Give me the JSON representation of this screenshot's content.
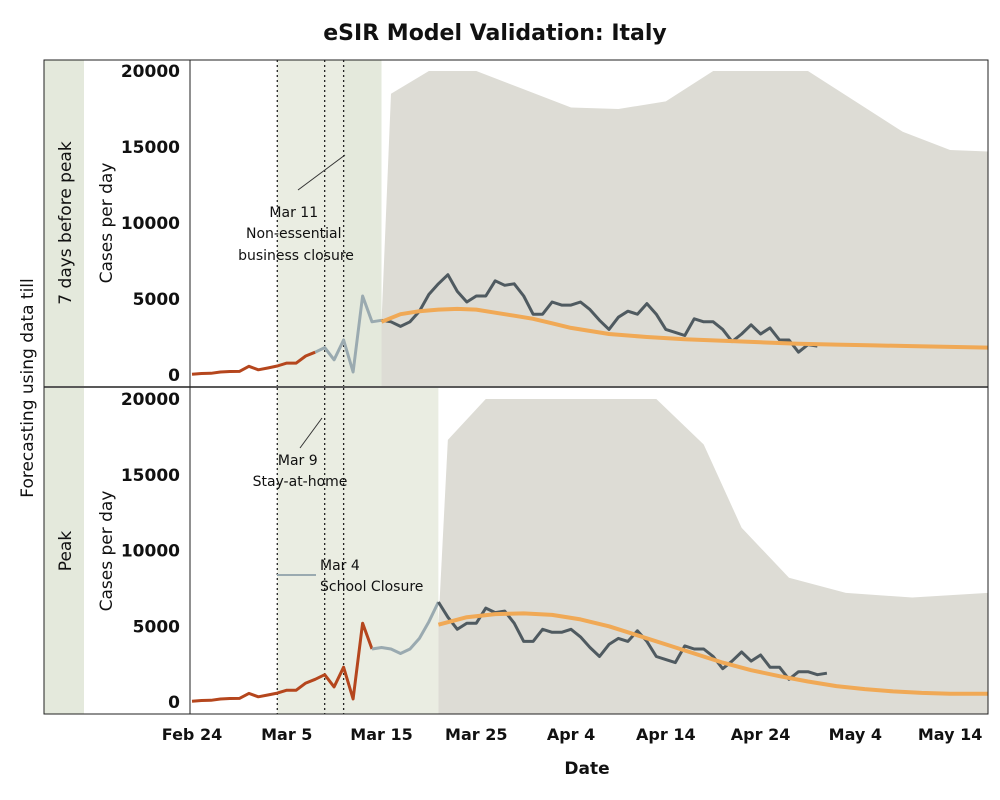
{
  "chart_data": {
    "type": "line",
    "title": "eSIR Model Validation: Italy",
    "xlabel": "Date",
    "outer_ylabel": "Forecasting using data till",
    "xticks": [
      "Feb 24",
      "Mar 5",
      "Mar 15",
      "Mar 25",
      "Apr 4",
      "Apr 14",
      "Apr 24",
      "May 4",
      "May 14"
    ],
    "xlim": [
      "2020-02-24",
      "2020-05-18"
    ],
    "ylim": [
      0,
      20000
    ],
    "yticks": [
      0,
      5000,
      10000,
      15000,
      20000
    ],
    "colors": {
      "observed_before": "#b5461d",
      "observed_training": "#9aaab0",
      "observed_after": "#4f5a60",
      "prediction": "#f0a956",
      "ci_band": "#dddcd5",
      "period_shade": "#eaede2",
      "row_label_bg": "#e4e9dc"
    },
    "panels": [
      {
        "row_label": "7 days before peak",
        "ylabel": "Cases per day",
        "annotation": {
          "date": "Mar 11",
          "lines": [
            "Mar 11",
            "Non-essential",
            "business closure"
          ]
        },
        "series": [
          {
            "role": "observed_before",
            "x": [
              "2020-02-24",
              "2020-02-25",
              "2020-02-26",
              "2020-02-27",
              "2020-02-28",
              "2020-02-29",
              "2020-03-01",
              "2020-03-02",
              "2020-03-03",
              "2020-03-04",
              "2020-03-05",
              "2020-03-06",
              "2020-03-07",
              "2020-03-08"
            ],
            "y": [
              50,
              100,
              110,
              200,
              230,
              240,
              570,
              340,
              460,
              590,
              780,
              780,
              1250,
              1500
            ]
          },
          {
            "role": "observed_training",
            "x": [
              "2020-03-08",
              "2020-03-09",
              "2020-03-10",
              "2020-03-11",
              "2020-03-12",
              "2020-03-13",
              "2020-03-14",
              "2020-03-15"
            ],
            "y": [
              1500,
              1800,
              1000,
              2300,
              200,
              5200,
              3500,
              3600
            ]
          },
          {
            "role": "observed_after",
            "x": [
              "2020-03-15",
              "2020-03-16",
              "2020-03-17",
              "2020-03-18",
              "2020-03-19",
              "2020-03-20",
              "2020-03-21",
              "2020-03-22",
              "2020-03-23",
              "2020-03-24",
              "2020-03-25",
              "2020-03-26",
              "2020-03-27",
              "2020-03-28",
              "2020-03-29",
              "2020-03-30",
              "2020-03-31",
              "2020-04-01",
              "2020-04-02",
              "2020-04-03",
              "2020-04-04",
              "2020-04-05",
              "2020-04-06",
              "2020-04-07",
              "2020-04-08",
              "2020-04-09",
              "2020-04-10",
              "2020-04-11",
              "2020-04-12",
              "2020-04-13",
              "2020-04-14",
              "2020-04-15",
              "2020-04-16",
              "2020-04-17",
              "2020-04-18",
              "2020-04-19",
              "2020-04-20",
              "2020-04-21",
              "2020-04-22",
              "2020-04-23",
              "2020-04-24",
              "2020-04-25",
              "2020-04-26",
              "2020-04-27",
              "2020-04-28",
              "2020-04-29",
              "2020-04-30"
            ],
            "y": [
              3600,
              3500,
              3200,
              3500,
              4200,
              5300,
              6000,
              6600,
              5500,
              4800,
              5200,
              5200,
              6200,
              5900,
              6000,
              5200,
              4000,
              4000,
              4800,
              4600,
              4600,
              4800,
              4300,
              3600,
              3000,
              3800,
              4200,
              4000,
              4700,
              4000,
              3000,
              2800,
              2600,
              3700,
              3500,
              3500,
              3000,
              2200,
              2700,
              3300,
              2700,
              3100,
              2300,
              2300,
              1500,
              2000,
              1900
            ]
          },
          {
            "role": "prediction",
            "x": [
              "2020-03-15",
              "2020-03-17",
              "2020-03-19",
              "2020-03-21",
              "2020-03-23",
              "2020-03-25",
              "2020-03-27",
              "2020-03-29",
              "2020-03-31",
              "2020-04-02",
              "2020-04-04",
              "2020-04-08",
              "2020-04-12",
              "2020-04-16",
              "2020-04-20",
              "2020-04-24",
              "2020-04-28",
              "2020-05-02",
              "2020-05-06",
              "2020-05-10",
              "2020-05-14",
              "2020-05-18"
            ],
            "y": [
              3500,
              4000,
              4200,
              4300,
              4350,
              4300,
              4100,
              3900,
              3700,
              3400,
              3100,
              2700,
              2500,
              2350,
              2250,
              2150,
              2050,
              2000,
              1950,
              1900,
              1850,
              1800
            ]
          },
          {
            "role": "ci_upper",
            "x": [
              "2020-03-15",
              "2020-03-16",
              "2020-03-20",
              "2020-03-25",
              "2020-03-30",
              "2020-04-04",
              "2020-04-09",
              "2020-04-14",
              "2020-04-19",
              "2020-04-24",
              "2020-04-29",
              "2020-05-04",
              "2020-05-09",
              "2020-05-14",
              "2020-05-18"
            ],
            "y": [
              3500,
              18500,
              20000,
              20000,
              18800,
              17600,
              17500,
              18000,
              20000,
              20000,
              20000,
              18000,
              16000,
              14800,
              14700
            ]
          }
        ],
        "vlines": [
          "2020-03-04",
          "2020-03-09",
          "2020-03-11"
        ],
        "shade_periods": [
          {
            "from": "2020-03-04",
            "to": "2020-03-11",
            "color": "period_shade"
          },
          {
            "from": "2020-03-11",
            "to": "2020-03-15",
            "color": "row_label_bg"
          }
        ]
      },
      {
        "row_label": "Peak",
        "ylabel": "Cases per day",
        "annotations": [
          {
            "date": "Mar 9",
            "lines": [
              "Mar 9",
              "Stay-at-home"
            ]
          },
          {
            "date": "Mar 4",
            "lines": [
              "Mar 4",
              "School Closure"
            ]
          }
        ],
        "series": [
          {
            "role": "observed_before",
            "x": [
              "2020-02-24",
              "2020-02-25",
              "2020-02-26",
              "2020-02-27",
              "2020-02-28",
              "2020-02-29",
              "2020-03-01",
              "2020-03-02",
              "2020-03-03",
              "2020-03-04",
              "2020-03-05",
              "2020-03-06",
              "2020-03-07",
              "2020-03-08",
              "2020-03-09",
              "2020-03-10",
              "2020-03-11",
              "2020-03-12",
              "2020-03-13",
              "2020-03-14"
            ],
            "y": [
              50,
              100,
              110,
              200,
              230,
              240,
              570,
              340,
              460,
              590,
              780,
              780,
              1250,
              1500,
              1800,
              1000,
              2300,
              200,
              5200,
              3500
            ]
          },
          {
            "role": "observed_training",
            "x": [
              "2020-03-14",
              "2020-03-15",
              "2020-03-16",
              "2020-03-17",
              "2020-03-18",
              "2020-03-19",
              "2020-03-20",
              "2020-03-21"
            ],
            "y": [
              3500,
              3600,
              3500,
              3200,
              3500,
              4200,
              5300,
              6600
            ]
          },
          {
            "role": "observed_after",
            "x": [
              "2020-03-21",
              "2020-03-22",
              "2020-03-23",
              "2020-03-24",
              "2020-03-25",
              "2020-03-26",
              "2020-03-27",
              "2020-03-28",
              "2020-03-29",
              "2020-03-30",
              "2020-03-31",
              "2020-04-01",
              "2020-04-02",
              "2020-04-03",
              "2020-04-04",
              "2020-04-05",
              "2020-04-06",
              "2020-04-07",
              "2020-04-08",
              "2020-04-09",
              "2020-04-10",
              "2020-04-11",
              "2020-04-12",
              "2020-04-13",
              "2020-04-14",
              "2020-04-15",
              "2020-04-16",
              "2020-04-17",
              "2020-04-18",
              "2020-04-19",
              "2020-04-20",
              "2020-04-21",
              "2020-04-22",
              "2020-04-23",
              "2020-04-24",
              "2020-04-25",
              "2020-04-26",
              "2020-04-27",
              "2020-04-28",
              "2020-04-29",
              "2020-04-30",
              "2020-05-01"
            ],
            "y": [
              6600,
              5600,
              4800,
              5200,
              5200,
              6200,
              5900,
              6000,
              5200,
              4000,
              4000,
              4800,
              4600,
              4600,
              4800,
              4300,
              3600,
              3000,
              3800,
              4200,
              4000,
              4700,
              4000,
              3000,
              2800,
              2600,
              3700,
              3500,
              3500,
              3000,
              2200,
              2700,
              3300,
              2700,
              3100,
              2300,
              2300,
              1500,
              2000,
              2000,
              1800,
              1900
            ]
          },
          {
            "role": "prediction",
            "x": [
              "2020-03-21",
              "2020-03-24",
              "2020-03-27",
              "2020-03-30",
              "2020-04-02",
              "2020-04-05",
              "2020-04-08",
              "2020-04-11",
              "2020-04-14",
              "2020-04-17",
              "2020-04-20",
              "2020-04-23",
              "2020-04-26",
              "2020-04-29",
              "2020-05-02",
              "2020-05-05",
              "2020-05-08",
              "2020-05-11",
              "2020-05-14",
              "2020-05-18"
            ],
            "y": [
              5100,
              5600,
              5800,
              5850,
              5750,
              5450,
              5000,
              4400,
              3800,
              3200,
              2600,
              2100,
              1700,
              1350,
              1050,
              850,
              700,
              600,
              550,
              550
            ]
          },
          {
            "role": "ci_upper",
            "x": [
              "2020-03-21",
              "2020-03-22",
              "2020-03-26",
              "2020-04-01",
              "2020-04-07",
              "2020-04-13",
              "2020-04-18",
              "2020-04-22",
              "2020-04-27",
              "2020-05-03",
              "2020-05-10",
              "2020-05-18"
            ],
            "y": [
              5100,
              17300,
              20000,
              20000,
              20000,
              20000,
              17000,
              11500,
              8200,
              7200,
              6900,
              7200
            ]
          }
        ],
        "vlines": [
          "2020-03-04",
          "2020-03-09",
          "2020-03-11"
        ],
        "shade_periods": [
          {
            "from": "2020-03-04",
            "to": "2020-03-21",
            "color": "period_shade"
          }
        ]
      }
    ]
  }
}
